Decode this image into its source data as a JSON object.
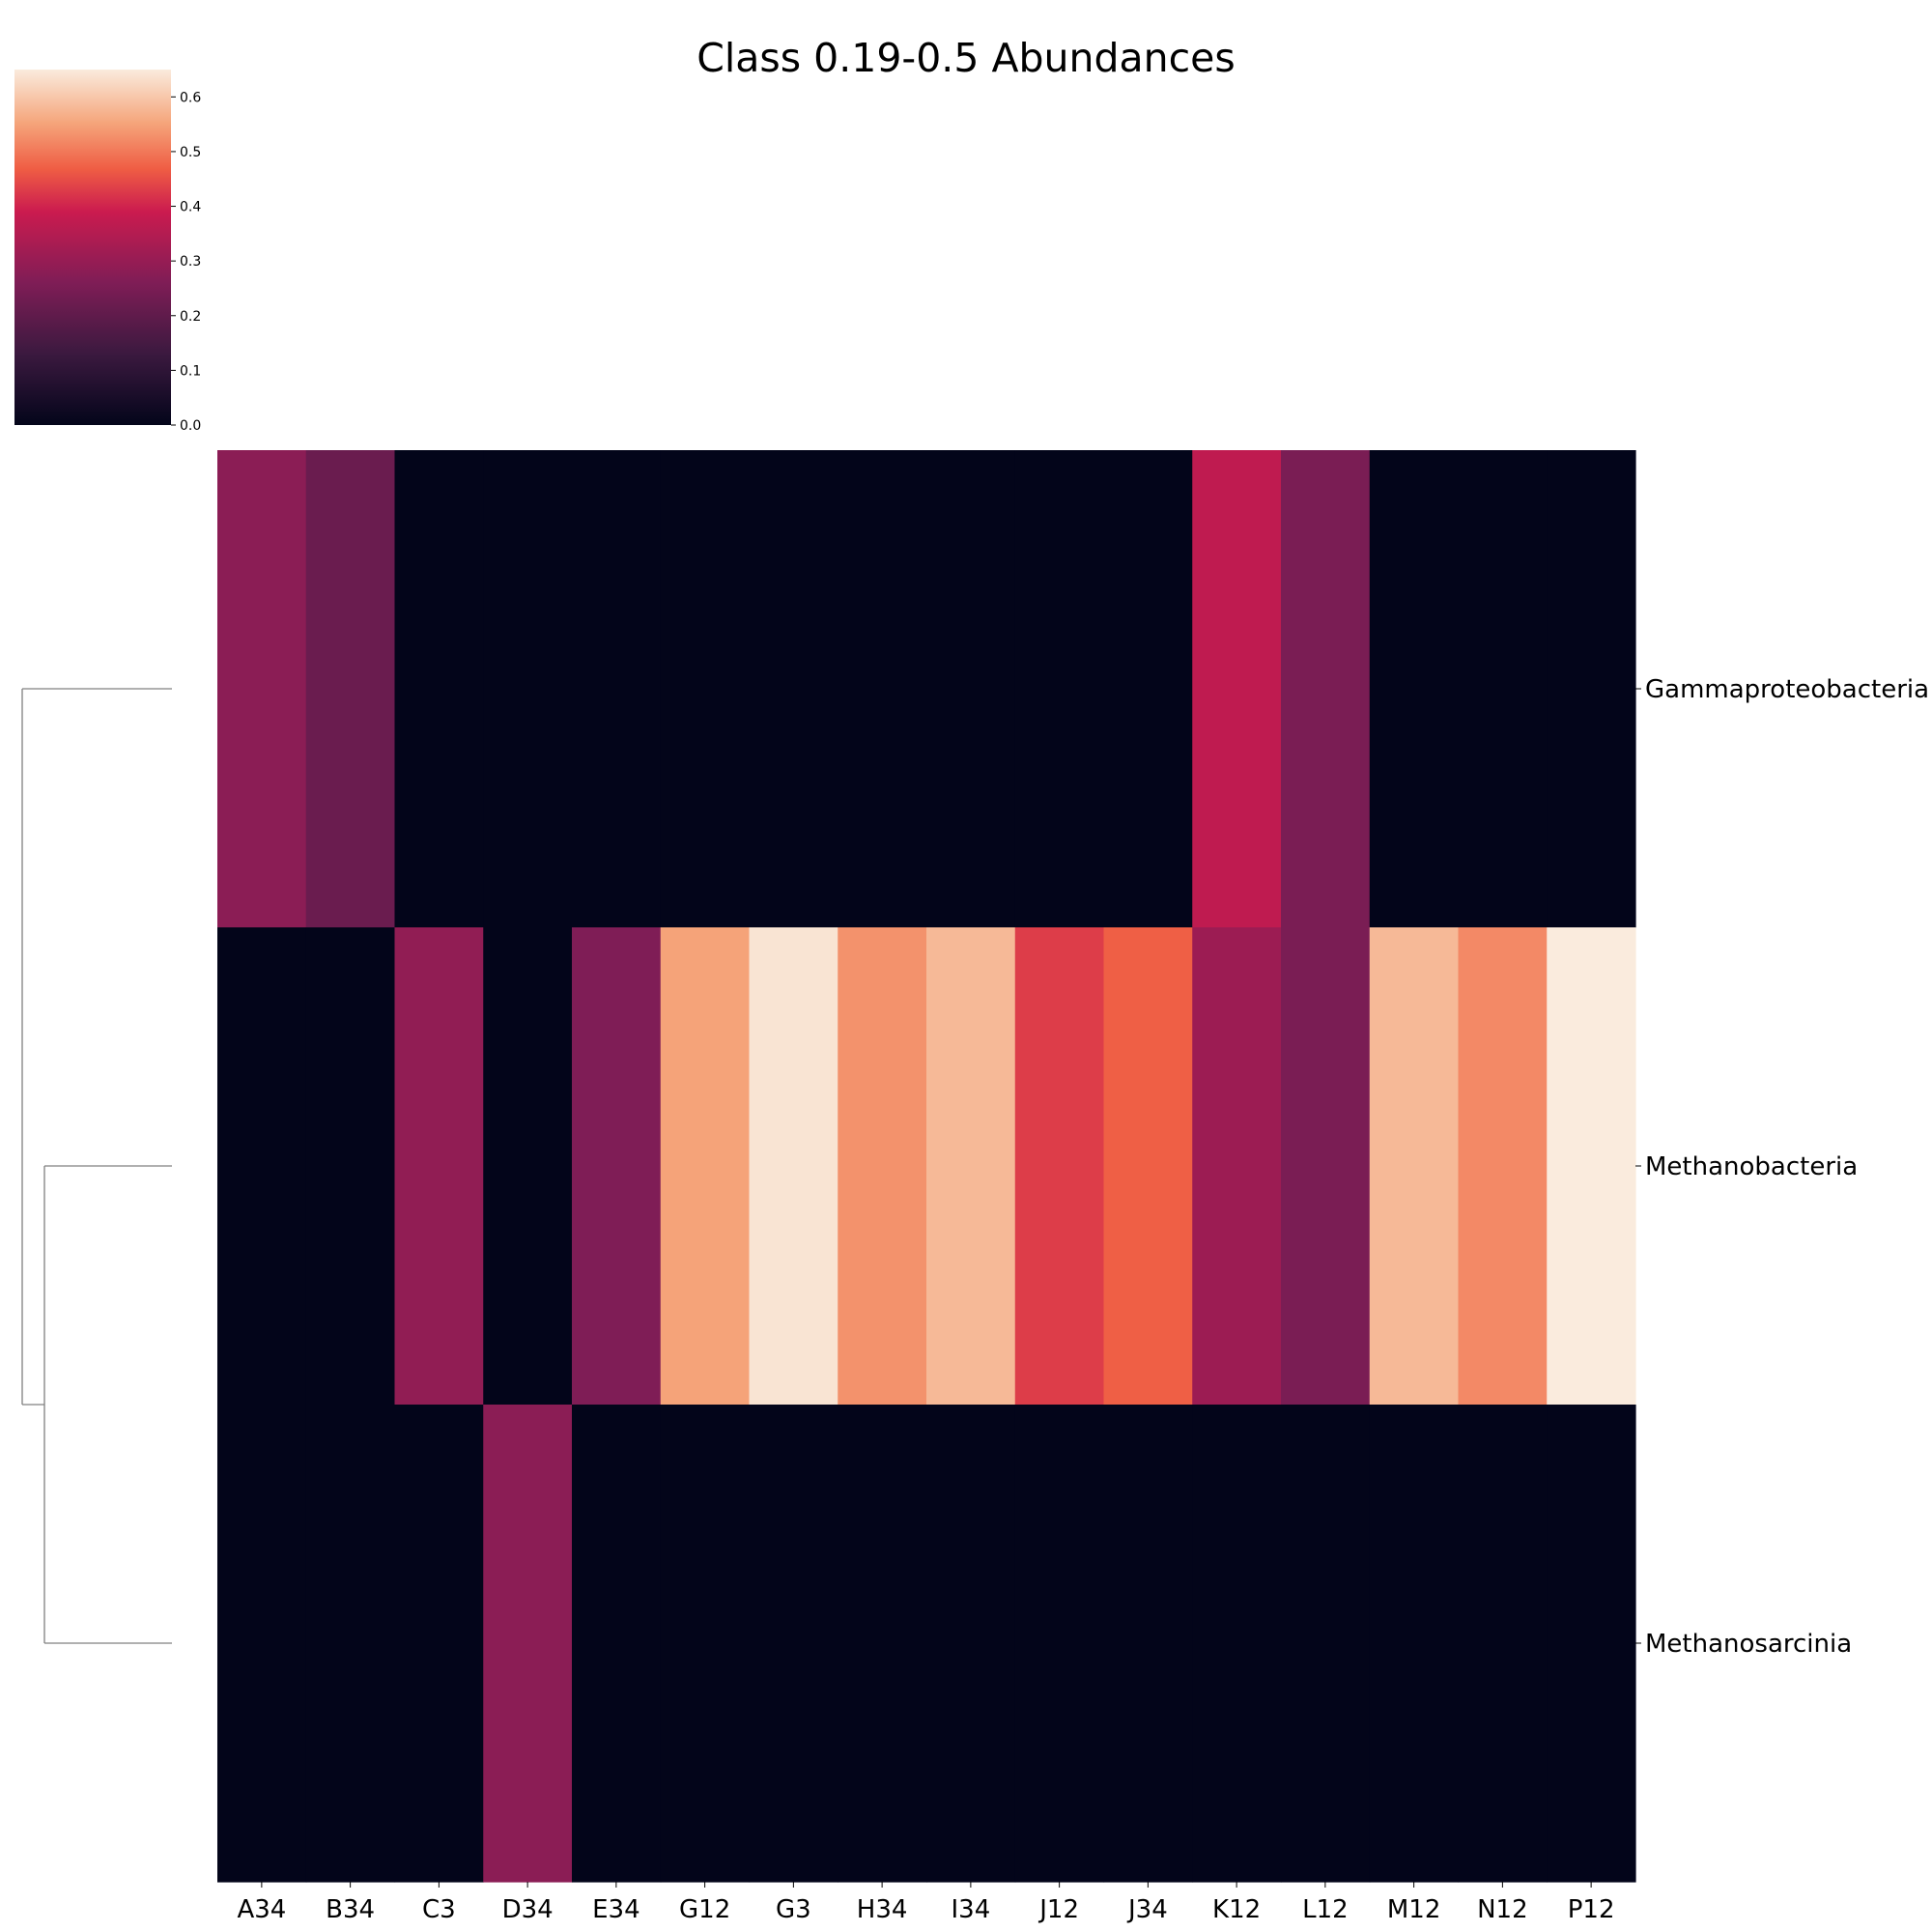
{
  "chart_data": {
    "type": "heatmap",
    "title": "Class 0.19-0.5 Abundances",
    "columns": [
      "A34",
      "B34",
      "C3",
      "D34",
      "E34",
      "G12",
      "G3",
      "H34",
      "I34",
      "J12",
      "J34",
      "K12",
      "L12",
      "M12",
      "N12",
      "P12"
    ],
    "rows": [
      "Gammaproteobacteria",
      "Methanobacteria",
      "Methanosarcinia"
    ],
    "values": [
      [
        0.28,
        0.22,
        0.0,
        0.0,
        0.0,
        0.0,
        0.0,
        0.0,
        0.0,
        0.0,
        0.0,
        0.37,
        0.25,
        0.0,
        0.0,
        0.0
      ],
      [
        0.0,
        0.0,
        0.29,
        0.0,
        0.26,
        0.55,
        0.64,
        0.53,
        0.58,
        0.43,
        0.47,
        0.31,
        0.25,
        0.58,
        0.52,
        0.65
      ],
      [
        0.0,
        0.0,
        0.0,
        0.28,
        0.0,
        0.0,
        0.0,
        0.0,
        0.0,
        0.0,
        0.0,
        0.0,
        0.0,
        0.0,
        0.0,
        0.0
      ]
    ],
    "colorbar": {
      "colormap": "rocket",
      "range": [
        0,
        0.65
      ],
      "ticks": [
        "0.0",
        "0.1",
        "0.2",
        "0.3",
        "0.4",
        "0.5",
        "0.6"
      ]
    },
    "dendrogram": "rows",
    "grid": false
  }
}
